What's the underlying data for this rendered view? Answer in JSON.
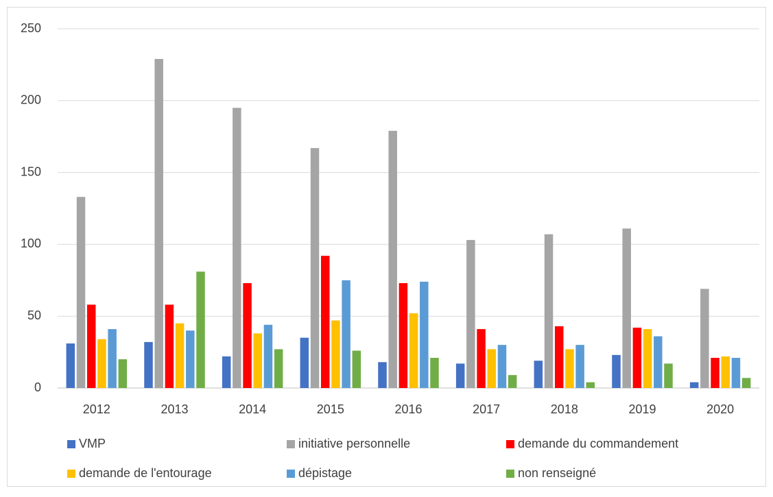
{
  "chart_data": {
    "type": "bar",
    "categories": [
      "2012",
      "2013",
      "2014",
      "2015",
      "2016",
      "2017",
      "2018",
      "2019",
      "2020"
    ],
    "series": [
      {
        "name": "VMP",
        "color": "#4472c4",
        "values": [
          31,
          32,
          22,
          35,
          18,
          17,
          19,
          23,
          4
        ]
      },
      {
        "name": "initiative personnelle",
        "color": "#a5a5a5",
        "values": [
          133,
          229,
          195,
          167,
          179,
          103,
          107,
          111,
          69
        ]
      },
      {
        "name": "demande du commandement",
        "color": "#ff0000",
        "values": [
          58,
          58,
          73,
          92,
          73,
          41,
          43,
          42,
          21
        ]
      },
      {
        "name": "demande de l'entourage",
        "color": "#ffc000",
        "values": [
          34,
          45,
          38,
          47,
          52,
          27,
          27,
          41,
          22
        ]
      },
      {
        "name": "dépistage",
        "color": "#5b9bd5",
        "values": [
          41,
          40,
          44,
          75,
          74,
          30,
          30,
          36,
          21
        ]
      },
      {
        "name": "non renseigné",
        "color": "#70ad47",
        "values": [
          20,
          81,
          27,
          26,
          21,
          9,
          4,
          17,
          7
        ]
      }
    ],
    "ylim": [
      0,
      250
    ],
    "yticks": [
      0,
      50,
      100,
      150,
      200,
      250
    ],
    "grid": true,
    "legend": "bottom"
  }
}
